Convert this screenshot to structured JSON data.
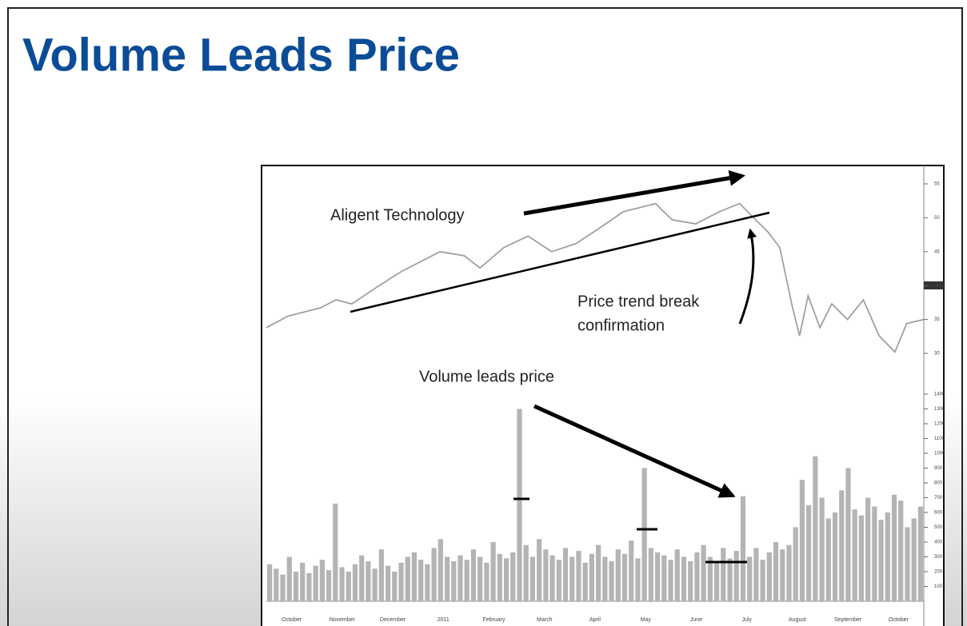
{
  "title": "Volume Leads Price",
  "chart_data": {
    "type": "price-volume",
    "annotations": [
      "Aligent Technology",
      "Price trend break",
      "confirmation",
      "Volume leads price"
    ],
    "x_labels": [
      "October",
      "November",
      "December",
      "2011",
      "February",
      "March",
      "April",
      "May",
      "June",
      "July",
      "August",
      "September",
      "October"
    ],
    "xlim": [
      0,
      100
    ],
    "price": {
      "color": "#a0a0a0",
      "x": [
        0,
        3.3,
        8.2,
        10.6,
        13,
        16.7,
        20.4,
        22.8,
        26.4,
        30.1,
        32.5,
        36.1,
        39.8,
        43.4,
        47.1,
        50.7,
        54.3,
        56.8,
        59.2,
        61.7,
        65.3,
        68.9,
        72,
        73.8,
        76.3,
        78.1,
        79.9,
        81.1,
        82.4,
        84.2,
        86,
        88.4,
        90.8,
        93.2,
        95.6,
        97.4,
        100
      ],
      "values": [
        33.8,
        35.5,
        36.7,
        37.9,
        37.3,
        39.7,
        42.0,
        43.2,
        45.0,
        44.4,
        42.6,
        45.6,
        47.3,
        45.0,
        46.2,
        48.5,
        50.9,
        51.5,
        52.1,
        49.7,
        49.1,
        50.9,
        52.1,
        50.3,
        47.9,
        45.6,
        37.3,
        32.6,
        38.5,
        33.8,
        37.3,
        35.0,
        37.9,
        32.6,
        30.2,
        34.4,
        35.0
      ],
      "ylim": [
        30,
        55
      ],
      "yticks": [
        30,
        35,
        40,
        45,
        50,
        55
      ]
    },
    "volume": {
      "color": "#b4b4b4",
      "values": [
        250,
        220,
        180,
        300,
        200,
        260,
        190,
        240,
        280,
        210,
        660,
        230,
        200,
        250,
        310,
        270,
        220,
        350,
        240,
        200,
        260,
        300,
        330,
        280,
        250,
        360,
        420,
        300,
        270,
        310,
        280,
        350,
        300,
        260,
        400,
        320,
        290,
        330,
        1300,
        380,
        300,
        420,
        350,
        310,
        280,
        360,
        300,
        340,
        260,
        320,
        380,
        300,
        270,
        350,
        320,
        410,
        290,
        900,
        360,
        330,
        310,
        280,
        350,
        300,
        270,
        330,
        380,
        300,
        260,
        360,
        290,
        340,
        710,
        300,
        360,
        280,
        330,
        400,
        350,
        380,
        500,
        820,
        650,
        980,
        700,
        560,
        600,
        750,
        900,
        620,
        580,
        700,
        640,
        550,
        600,
        720,
        680,
        500,
        560,
        640
      ],
      "ylim": [
        0,
        1400
      ],
      "yticks": [
        100,
        200,
        300,
        400,
        500,
        600,
        700,
        800,
        900,
        1000,
        1100,
        1200,
        1300,
        1400
      ]
    }
  }
}
